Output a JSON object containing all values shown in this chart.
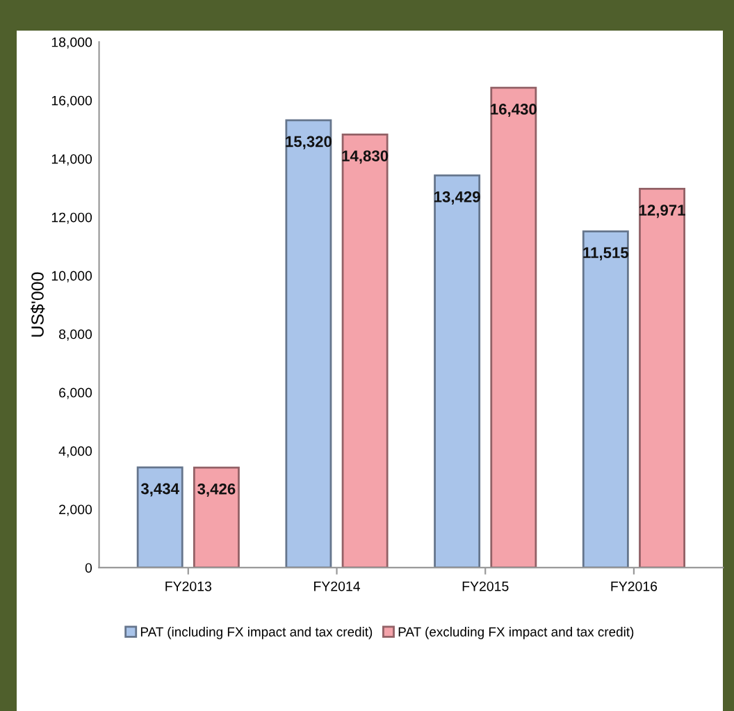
{
  "chart_data": {
    "type": "bar",
    "ylabel": "US$'000",
    "categories": [
      "FY2013",
      "FY2014",
      "FY2015",
      "FY2016"
    ],
    "series": [
      {
        "name": "PAT (including FX impact and tax credit)",
        "color": "#a9c4ea",
        "values": [
          3434,
          15320,
          13429,
          11515
        ],
        "value_labels": [
          "3,434",
          "15,320",
          "13,429",
          "11,515"
        ]
      },
      {
        "name": "PAT (excluding FX impact and tax credit)",
        "color": "#f4a3aa",
        "values": [
          3426,
          14830,
          16430,
          12971
        ],
        "value_labels": [
          "3,426",
          "14,830",
          "16,430",
          "12,971"
        ]
      }
    ],
    "ylim": [
      0,
      18000
    ],
    "yticks": [
      {
        "value": 0,
        "label": "0"
      },
      {
        "value": 2000,
        "label": "2,000"
      },
      {
        "value": 4000,
        "label": "4,000"
      },
      {
        "value": 6000,
        "label": "6,000"
      },
      {
        "value": 8000,
        "label": "8,000"
      },
      {
        "value": 10000,
        "label": "10,000"
      },
      {
        "value": 12000,
        "label": "12,000"
      },
      {
        "value": 14000,
        "label": "14,000"
      },
      {
        "value": 16000,
        "label": "16,000"
      },
      {
        "value": 18000,
        "label": "18,000"
      }
    ],
    "legend": "bottom",
    "grid": false
  }
}
